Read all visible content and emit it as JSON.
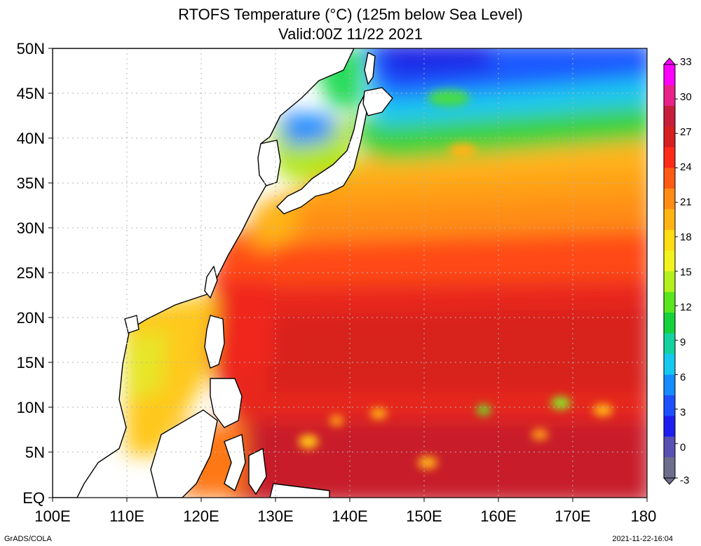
{
  "title": {
    "line1": "RTOFS Temperature (°C) (125m below Sea Level)",
    "line2": "Valid:00Z 11/22 2021"
  },
  "map": {
    "lat_labels": [
      "50N",
      "45N",
      "40N",
      "35N",
      "30N",
      "25N",
      "20N",
      "15N",
      "10N",
      "5N",
      "EQ"
    ],
    "lon_labels": [
      "100E",
      "110E",
      "120E",
      "130E",
      "140E",
      "150E",
      "160E",
      "170E",
      "180"
    ],
    "lat_range": [
      0,
      50
    ],
    "lon_range": [
      100,
      180
    ]
  },
  "colorbar": {
    "labels": [
      "33",
      "30",
      "27",
      "24",
      "21",
      "18",
      "15",
      "12",
      "9",
      "6",
      "3",
      "0",
      "-3"
    ],
    "colors": [
      "#ff00ff",
      "#e8228a",
      "#c81e3c",
      "#d62020",
      "#ff2a1a",
      "#ff5a14",
      "#ff8c14",
      "#ffb414",
      "#ffdc14",
      "#f2f21e",
      "#b4f01e",
      "#5ae61e",
      "#14d23c",
      "#14d2a0",
      "#14c8f0",
      "#148cff",
      "#1e50ff",
      "#1e1ef0",
      "#5a50b4",
      "#6e6e8c"
    ]
  },
  "footer": {
    "left": "GrADS/COLA",
    "right": "2021-11-22-16:04"
  }
}
